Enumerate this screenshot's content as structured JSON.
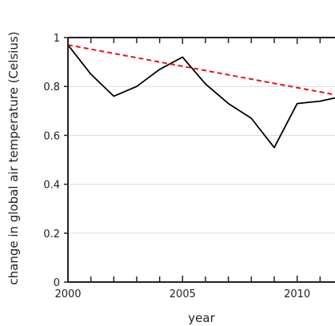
{
  "chart_data": {
    "type": "line",
    "title": "",
    "xlabel": "year",
    "ylabel": "change in global air temperature (Celsius)",
    "xlim": [
      2000,
      2012
    ],
    "ylim": [
      0,
      1
    ],
    "x_ticks": [
      2000,
      2005,
      2010
    ],
    "x_tick_labels": [
      "2000",
      "2005",
      "2010"
    ],
    "x_minor_ticks": [
      2001,
      2002,
      2003,
      2004,
      2006,
      2007,
      2008,
      2009,
      2011
    ],
    "y_ticks": [
      0,
      0.2,
      0.4,
      0.6,
      0.8,
      1
    ],
    "y_tick_labels": [
      "0",
      "0.2",
      "0.4",
      "0.6",
      "0.8",
      "1"
    ],
    "grid": {
      "horizontal": true,
      "vertical": false
    },
    "series": [
      {
        "style": "solid",
        "color": "#000000",
        "x": [
          2000,
          2001,
          2002,
          2003,
          2004,
          2005,
          2006,
          2007,
          2008,
          2009,
          2010,
          2011,
          2012
        ],
        "y": [
          0.97,
          0.85,
          0.76,
          0.8,
          0.87,
          0.92,
          0.81,
          0.73,
          0.67,
          0.55,
          0.73,
          0.74,
          0.76
        ]
      },
      {
        "style": "dashed",
        "color": "#ee1111",
        "x": [
          2000,
          2012
        ],
        "y": [
          0.97,
          0.76
        ]
      }
    ]
  }
}
